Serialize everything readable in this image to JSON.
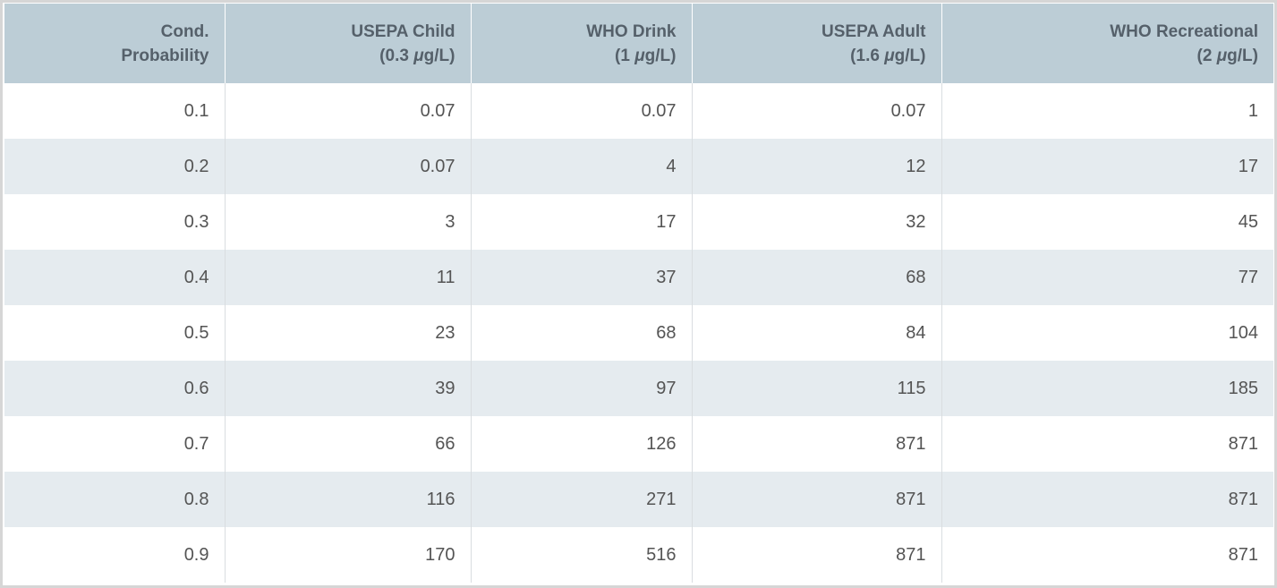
{
  "table": {
    "headers": [
      {
        "line1": "Cond.",
        "line2_pre": "Probability",
        "mu": "",
        "line2_post": ""
      },
      {
        "line1": "USEPA Child",
        "line2_pre": "(0.3 ",
        "mu": "μ",
        "line2_post": "g/L)"
      },
      {
        "line1": "WHO Drink",
        "line2_pre": "(1 ",
        "mu": "μ",
        "line2_post": "g/L)"
      },
      {
        "line1": "USEPA Adult",
        "line2_pre": "(1.6 ",
        "mu": "μ",
        "line2_post": "g/L)"
      },
      {
        "line1": "WHO Recreational",
        "line2_pre": "(2 ",
        "mu": "μ",
        "line2_post": "g/L)"
      }
    ],
    "rows": [
      [
        "0.1",
        "0.07",
        "0.07",
        "0.07",
        "1"
      ],
      [
        "0.2",
        "0.07",
        "4",
        "12",
        "17"
      ],
      [
        "0.3",
        "3",
        "17",
        "32",
        "45"
      ],
      [
        "0.4",
        "11",
        "37",
        "68",
        "77"
      ],
      [
        "0.5",
        "23",
        "68",
        "84",
        "104"
      ],
      [
        "0.6",
        "39",
        "97",
        "115",
        "185"
      ],
      [
        "0.7",
        "66",
        "126",
        "871",
        "871"
      ],
      [
        "0.8",
        "116",
        "271",
        "871",
        "871"
      ],
      [
        "0.9",
        "170",
        "516",
        "871",
        "871"
      ]
    ]
  },
  "colors": {
    "header_background": "#bccdd6",
    "header_text": "#55606a",
    "stripe_background": "#e5ebef",
    "cell_text": "#545454"
  }
}
